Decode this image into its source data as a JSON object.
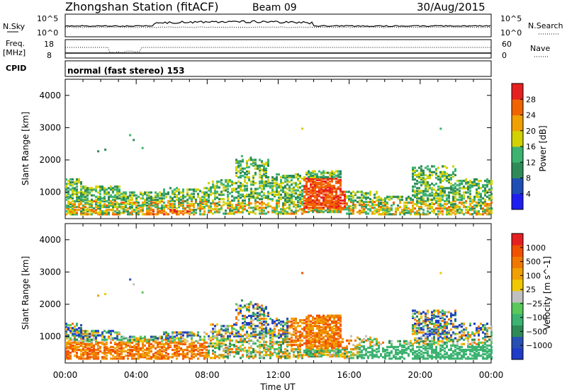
{
  "header": {
    "station": "Zhongshan Station (fitACF)",
    "beam": "Beam 09",
    "date": "30/Aug/2015"
  },
  "strip": {
    "nsky_label": "N.Sky",
    "nsky_top": "10^5",
    "nsky_bottom": "10^0",
    "nsearch_label": "N.Search",
    "nsearch_top": "10^5",
    "nsearch_bottom": "10^0",
    "freq_label": "Freq.",
    "freq_unit": "[MHz]",
    "freq_top": "18",
    "freq_bottom": "8",
    "nave_label": "Nave",
    "nave_top": "60",
    "nave_bottom": "0",
    "cpid_label": "CPID",
    "cpid_value": "normal (fast stereo) 153"
  },
  "chart_data": [
    {
      "type": "heatmap",
      "panel": "power",
      "ylabel": "Slant Range [km]",
      "xlabel": "",
      "yticks": [
        1000,
        2000,
        3000,
        4000
      ],
      "ylim": [
        180,
        4500
      ],
      "xlim": [
        0,
        24
      ],
      "colorbar_label": "Power [dB]",
      "colorbar_ticks": [
        "4",
        "8",
        "12",
        "16",
        "20",
        "24",
        "28"
      ],
      "colorbar_colors": [
        "#1e1ef0",
        "#1f4eb4",
        "#2e8b57",
        "#3cb371",
        "#d2d200",
        "#f0a000",
        "#f06400",
        "#e62020"
      ]
    },
    {
      "type": "heatmap",
      "panel": "velocity",
      "ylabel": "Slant Range [km]",
      "xlabel": "Time UT",
      "xticks": [
        "00:00",
        "04:00",
        "08:00",
        "12:00",
        "16:00",
        "20:00",
        "00:00"
      ],
      "yticks": [
        1000,
        2000,
        3000,
        4000
      ],
      "ylim": [
        180,
        4500
      ],
      "xlim": [
        0,
        24
      ],
      "colorbar_label": "Velocity [m s^-1]",
      "colorbar_ticks": [
        "1000",
        "500",
        "100",
        "25",
        "−25",
        "−100",
        "−500",
        "−1000"
      ],
      "colorbar_colors": [
        "#1e3cc8",
        "#2850b4",
        "#2e8b57",
        "#3cb371",
        "#5ac85a",
        "#c0c0c0",
        "#f0c800",
        "#f0a000",
        "#f07800",
        "#f05000",
        "#e62020"
      ]
    }
  ]
}
